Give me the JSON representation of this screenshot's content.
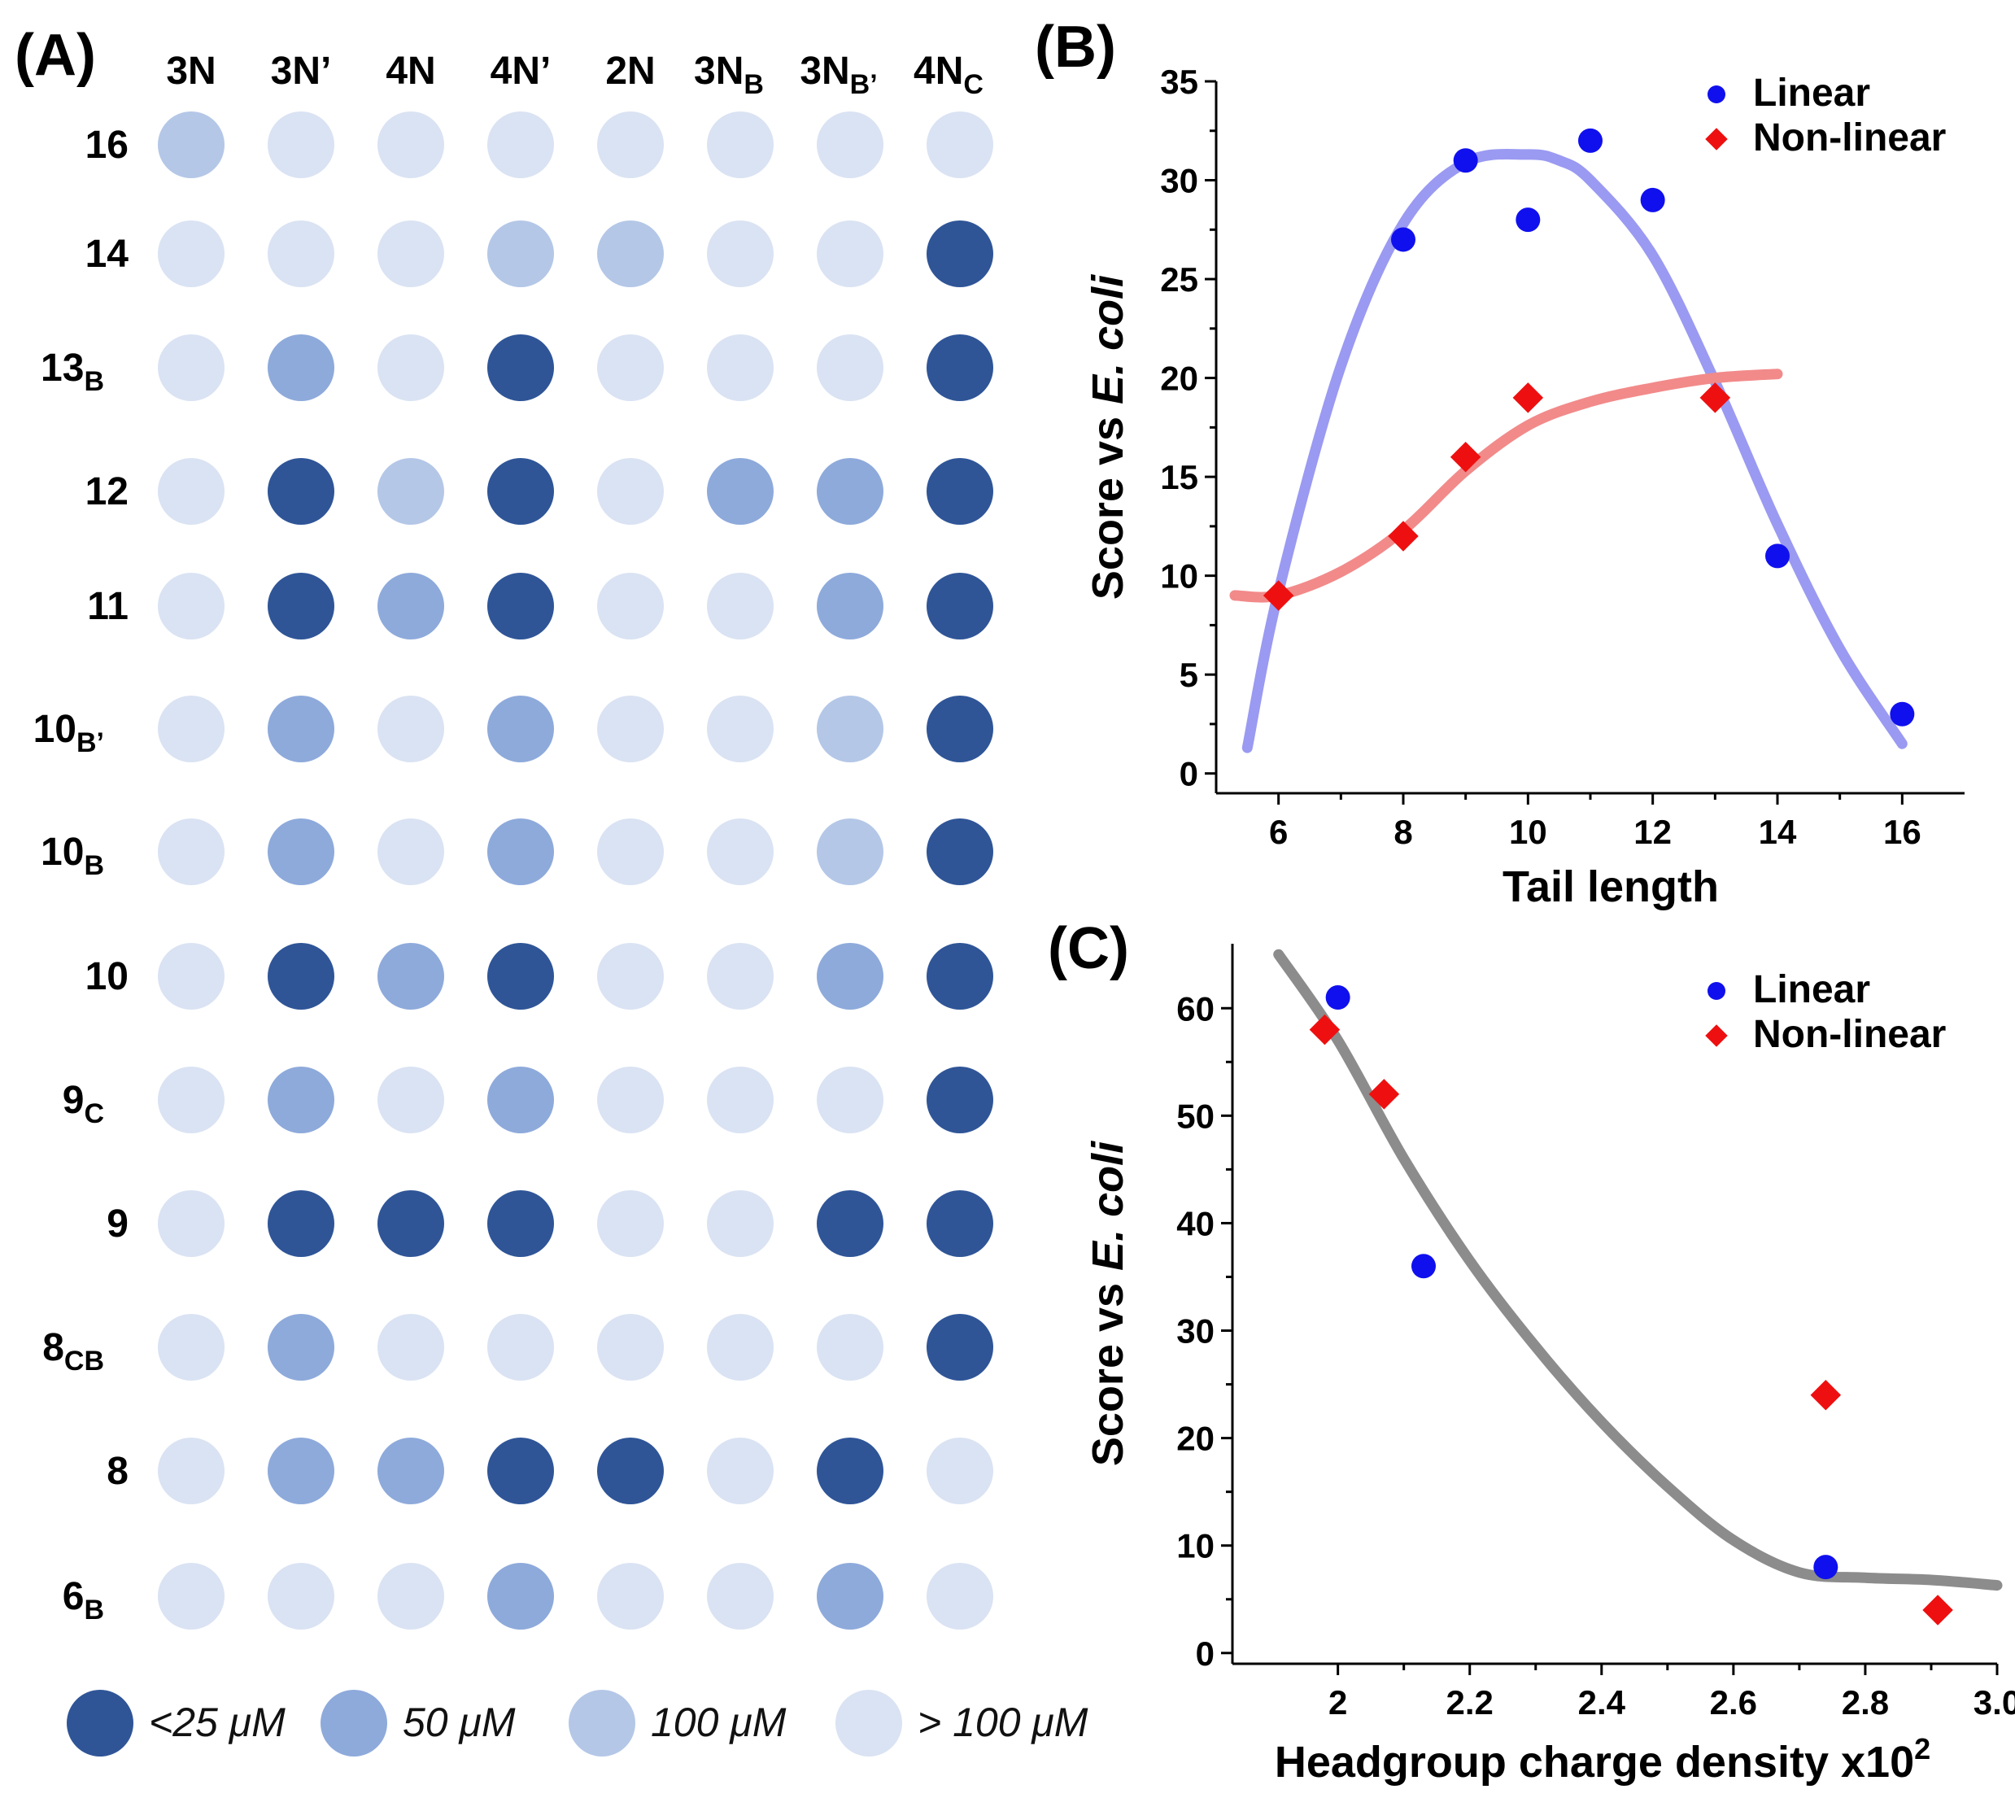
{
  "chart_data": [
    {
      "panel": "(A)",
      "type": "heatmap",
      "columns": [
        "3N",
        "3N'",
        "4N",
        "4N'",
        "2N",
        "3NB",
        "3NB'",
        "4NC"
      ],
      "column_labels": [
        {
          "main": "3N",
          "sub": ""
        },
        {
          "main": "3N’",
          "sub": ""
        },
        {
          "main": "4N",
          "sub": ""
        },
        {
          "main": "4N’",
          "sub": ""
        },
        {
          "main": "2N",
          "sub": ""
        },
        {
          "main": "3N",
          "sub": "B"
        },
        {
          "main": "3N",
          "sub": "B’"
        },
        {
          "main": "4N",
          "sub": "C"
        }
      ],
      "row_labels": [
        {
          "main": "16",
          "sub": ""
        },
        {
          "main": "14",
          "sub": ""
        },
        {
          "main": "13",
          "sub": "B"
        },
        {
          "main": "12",
          "sub": ""
        },
        {
          "main": "11",
          "sub": ""
        },
        {
          "main": "10",
          "sub": "B’"
        },
        {
          "main": "10",
          "sub": "B"
        },
        {
          "main": "10",
          "sub": ""
        },
        {
          "main": "9",
          "sub": "C"
        },
        {
          "main": "9",
          "sub": ""
        },
        {
          "main": "8",
          "sub": "CB"
        },
        {
          "main": "8",
          "sub": ""
        },
        {
          "main": "6",
          "sub": "B"
        }
      ],
      "levels": [
        {
          "label": "<25 μM",
          "color": "#2f5597"
        },
        {
          "label": "50 μM",
          "color": "#8eaadb"
        },
        {
          "label": "100 μM",
          "color": "#b4c7e7"
        },
        {
          "label": "> 100 μM",
          "color": "#dae3f3"
        }
      ],
      "values": [
        [
          2,
          3,
          3,
          3,
          3,
          3,
          3,
          3
        ],
        [
          3,
          3,
          3,
          2,
          2,
          3,
          3,
          0
        ],
        [
          3,
          1,
          3,
          0,
          3,
          3,
          3,
          0
        ],
        [
          3,
          0,
          2,
          0,
          3,
          1,
          1,
          0
        ],
        [
          3,
          0,
          1,
          0,
          3,
          3,
          1,
          0
        ],
        [
          3,
          1,
          3,
          1,
          3,
          3,
          2,
          0
        ],
        [
          3,
          1,
          3,
          1,
          3,
          3,
          2,
          0
        ],
        [
          3,
          0,
          1,
          0,
          3,
          3,
          1,
          0
        ],
        [
          3,
          1,
          3,
          1,
          3,
          3,
          3,
          0
        ],
        [
          3,
          0,
          0,
          0,
          3,
          3,
          0,
          0
        ],
        [
          3,
          1,
          3,
          3,
          3,
          3,
          3,
          0
        ],
        [
          3,
          1,
          1,
          0,
          0,
          3,
          0,
          3
        ],
        [
          3,
          3,
          3,
          1,
          3,
          3,
          1,
          3
        ]
      ]
    },
    {
      "panel": "(B)",
      "type": "scatter",
      "xlabel": "Tail length",
      "ylabel_prefix": "Score vs ",
      "ylabel_italic": "E. coli",
      "xlim": [
        5,
        17
      ],
      "ylim": [
        -1,
        35
      ],
      "xticks": [
        6,
        8,
        10,
        12,
        14,
        16
      ],
      "yticks": [
        0,
        5,
        10,
        15,
        20,
        25,
        30,
        35
      ],
      "series": [
        {
          "name": "Linear",
          "color": "#1010ee",
          "marker": "circle",
          "x": [
            8,
            9,
            10,
            11,
            12,
            14,
            16
          ],
          "y": [
            27,
            31,
            28,
            32,
            29,
            11,
            3
          ],
          "fit_color": "#9a9af2",
          "fit_x": [
            5.5,
            6,
            7,
            8,
            9,
            10,
            10.5,
            11,
            12,
            13,
            14,
            15,
            16
          ],
          "fit_y": [
            1.3,
            9.2,
            20.6,
            27.8,
            30.9,
            31.3,
            31.0,
            30.0,
            26.2,
            19.8,
            12.6,
            6.3,
            1.5
          ]
        },
        {
          "name": "Non-linear",
          "color": "#ee1010",
          "marker": "diamond",
          "x": [
            6,
            8,
            9,
            10,
            13
          ],
          "y": [
            9,
            12,
            16,
            19,
            19
          ],
          "fit_color": "#f28a8a",
          "fit_x": [
            5.3,
            6,
            7,
            8,
            9,
            10,
            11,
            12,
            13,
            14
          ],
          "fit_y": [
            9.0,
            9.0,
            10.2,
            12.3,
            15.3,
            17.6,
            18.8,
            19.5,
            20.0,
            20.2
          ]
        }
      ]
    },
    {
      "panel": "(C)",
      "type": "scatter",
      "xlabel": "Headgroup charge density x10",
      "xlabel_sup": "2",
      "ylabel_prefix": "Score vs ",
      "ylabel_italic": "E. coli",
      "xlim": [
        1.84,
        3.0
      ],
      "ylim": [
        -1,
        66
      ],
      "xticks": [
        2.0,
        2.2,
        2.4,
        2.6,
        2.8,
        3.0
      ],
      "xtick_labels": [
        "2",
        "2.2",
        "2.4",
        "2.6",
        "2.8",
        "3.0"
      ],
      "yticks": [
        0,
        10,
        20,
        30,
        40,
        50,
        60
      ],
      "series": [
        {
          "name": "Linear",
          "color": "#1010ee",
          "marker": "circle",
          "x": [
            2.0,
            2.13,
            2.74
          ],
          "y": [
            61,
            36,
            8
          ]
        },
        {
          "name": "Non-linear",
          "color": "#ee1010",
          "marker": "diamond",
          "x": [
            1.98,
            2.07,
            2.74,
            2.91
          ],
          "y": [
            58,
            52,
            24,
            4
          ]
        }
      ],
      "fit": {
        "color": "#8c8c8c",
        "x": [
          1.91,
          2.0,
          2.1,
          2.2,
          2.3,
          2.4,
          2.5,
          2.6,
          2.7,
          2.8,
          2.9,
          3.0
        ],
        "y": [
          65,
          57,
          46,
          36.5,
          28.5,
          21.5,
          15.5,
          10.5,
          7.5,
          7.0,
          6.8,
          6.3
        ]
      }
    }
  ]
}
